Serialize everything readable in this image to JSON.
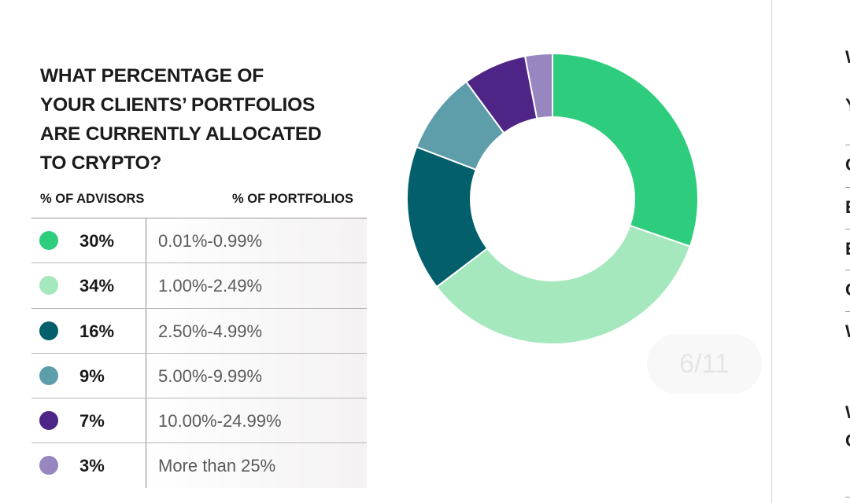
{
  "question": {
    "lines": [
      "WHAT PERCENTAGE OF",
      "YOUR CLIENTS’ PORTFOLIOS",
      "ARE CURRENTLY ALLOCATED",
      "TO CRYPTO?"
    ]
  },
  "table": {
    "header_advisors": "% OF ADVISORS",
    "header_portfolios": "% OF PORTFOLIOS"
  },
  "chart_data": {
    "type": "pie",
    "donut": true,
    "categories": [
      "0.01%-0.99%",
      "1.00%-2.49%",
      "2.50%-4.99%",
      "5.00%-9.99%",
      "10.00%-24.99%",
      "More than 25%"
    ],
    "values": [
      30,
      34,
      16,
      9,
      7,
      3
    ],
    "labels": [
      "30%",
      "34%",
      "16%",
      "9%",
      "7%",
      "3%"
    ],
    "colors": [
      "#2ecd7d",
      "#a6e8bd",
      "#035f6b",
      "#5e9eab",
      "#4e2587",
      "#9786c0"
    ],
    "legend": "left"
  },
  "page_indicator": "6/11",
  "right_panel": {
    "letters": [
      "W",
      "Y",
      "C",
      "E",
      "E",
      "C",
      "W",
      "W",
      "C"
    ]
  }
}
